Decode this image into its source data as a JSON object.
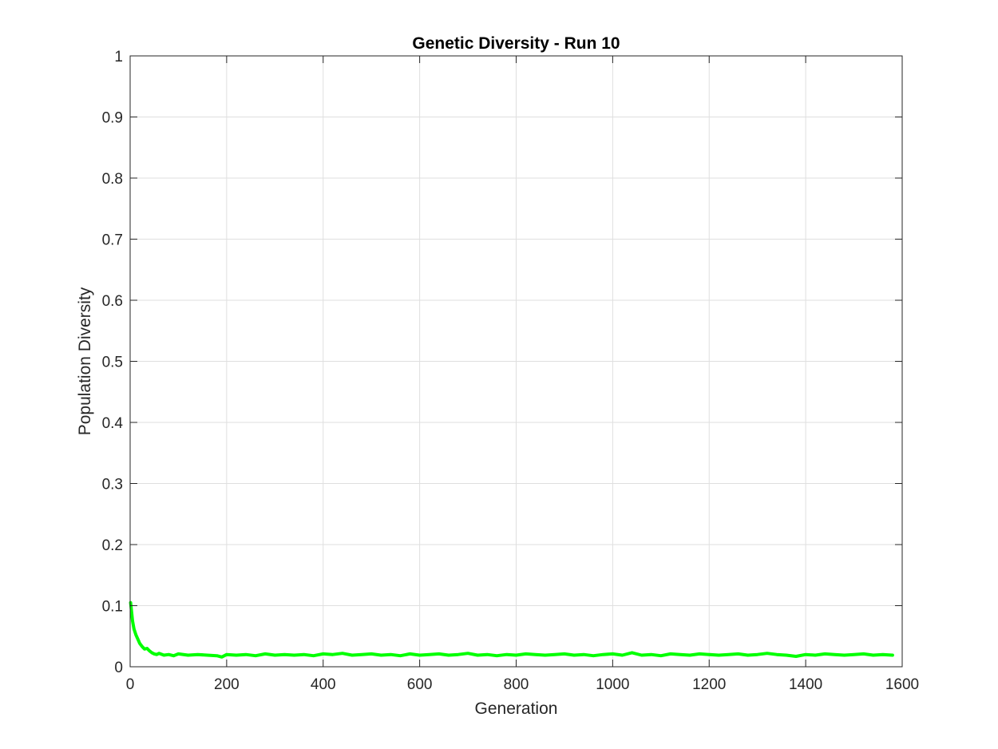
{
  "chart_data": {
    "type": "line",
    "title": "Genetic Diversity - Run 10",
    "xlabel": "Generation",
    "ylabel": "Population Diversity",
    "xlim": [
      0,
      1600
    ],
    "ylim": [
      0,
      1
    ],
    "xticks": [
      "0",
      "200",
      "400",
      "600",
      "800",
      "1000",
      "1200",
      "1400",
      "1600"
    ],
    "yticks": [
      "0",
      "0.1",
      "0.2",
      "0.3",
      "0.4",
      "0.5",
      "0.6",
      "0.7",
      "0.8",
      "0.9",
      "1"
    ],
    "grid": true,
    "series": [
      {
        "color": "#00ff00",
        "x": [
          1,
          3,
          5,
          8,
          12,
          16,
          20,
          25,
          30,
          35,
          40,
          45,
          50,
          55,
          60,
          70,
          80,
          90,
          100,
          120,
          140,
          160,
          180,
          190,
          200,
          220,
          240,
          260,
          280,
          300,
          320,
          340,
          360,
          380,
          400,
          420,
          440,
          460,
          480,
          500,
          520,
          540,
          560,
          580,
          600,
          620,
          640,
          660,
          680,
          700,
          720,
          740,
          760,
          780,
          800,
          820,
          840,
          860,
          880,
          900,
          920,
          940,
          960,
          980,
          1000,
          1020,
          1040,
          1060,
          1080,
          1100,
          1120,
          1140,
          1160,
          1180,
          1200,
          1220,
          1240,
          1260,
          1280,
          1300,
          1320,
          1340,
          1360,
          1380,
          1400,
          1420,
          1440,
          1460,
          1480,
          1500,
          1520,
          1540,
          1560,
          1580
        ],
        "y": [
          0.105,
          0.09,
          0.075,
          0.062,
          0.052,
          0.045,
          0.038,
          0.033,
          0.029,
          0.03,
          0.026,
          0.023,
          0.021,
          0.02,
          0.022,
          0.019,
          0.02,
          0.018,
          0.021,
          0.019,
          0.02,
          0.019,
          0.018,
          0.016,
          0.02,
          0.019,
          0.02,
          0.018,
          0.021,
          0.019,
          0.02,
          0.019,
          0.02,
          0.018,
          0.021,
          0.02,
          0.022,
          0.019,
          0.02,
          0.021,
          0.019,
          0.02,
          0.018,
          0.021,
          0.019,
          0.02,
          0.021,
          0.019,
          0.02,
          0.022,
          0.019,
          0.02,
          0.018,
          0.02,
          0.019,
          0.021,
          0.02,
          0.019,
          0.02,
          0.021,
          0.019,
          0.02,
          0.018,
          0.02,
          0.021,
          0.019,
          0.023,
          0.019,
          0.02,
          0.018,
          0.021,
          0.02,
          0.019,
          0.021,
          0.02,
          0.019,
          0.02,
          0.021,
          0.019,
          0.02,
          0.022,
          0.02,
          0.019,
          0.017,
          0.02,
          0.019,
          0.021,
          0.02,
          0.019,
          0.02,
          0.021,
          0.019,
          0.02,
          0.019
        ]
      }
    ]
  }
}
